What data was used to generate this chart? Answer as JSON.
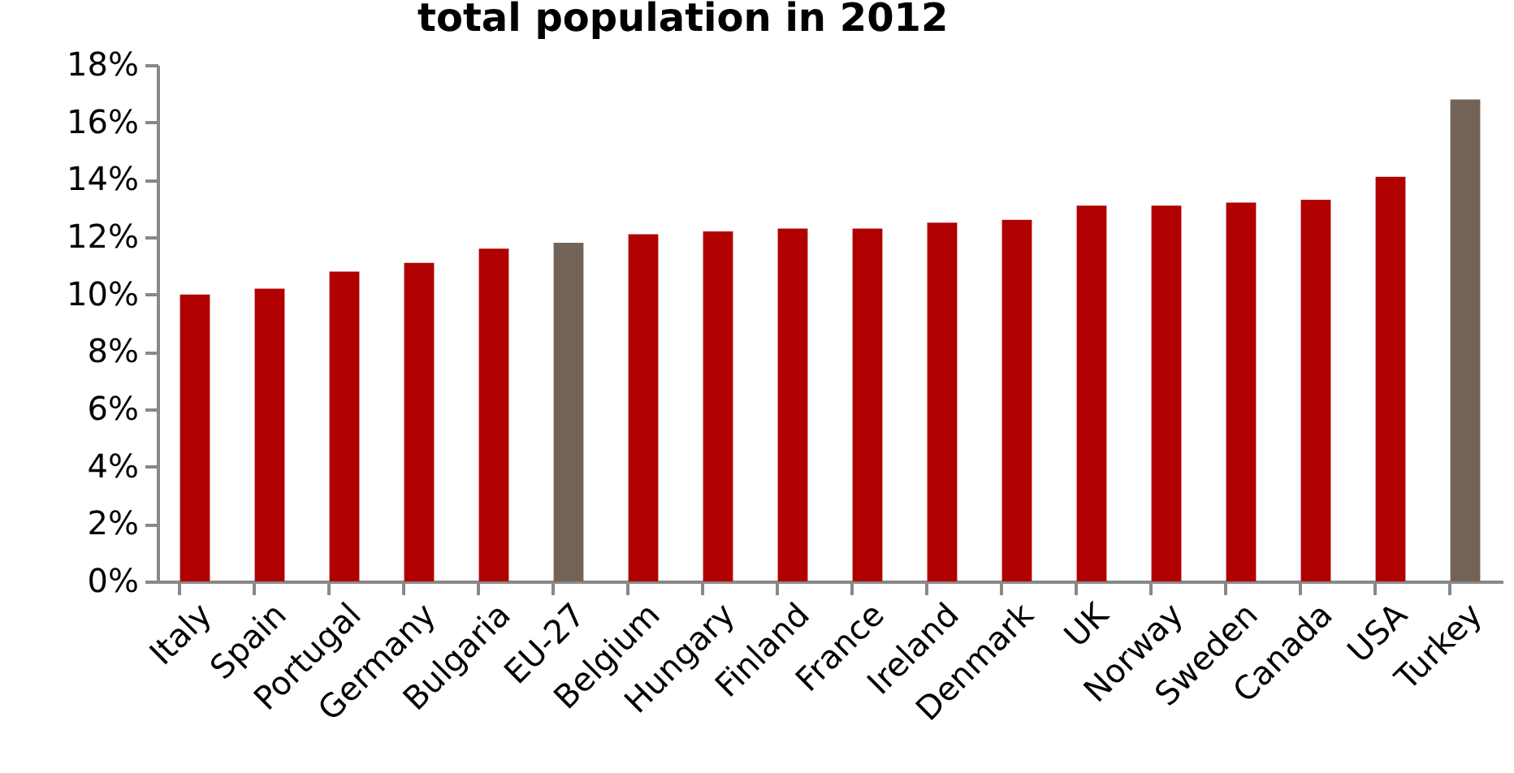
{
  "chart_data": {
    "type": "bar",
    "title": "total population in 2012",
    "categories": [
      "Italy",
      "Spain",
      "Portugal",
      "Germany",
      "Bulgaria",
      "EU-27",
      "Belgium",
      "Hungary",
      "Finland",
      "France",
      "Ireland",
      "Denmark",
      "UK",
      "Norway",
      "Sweden",
      "Canada",
      "USA",
      "Turkey"
    ],
    "values": [
      10.0,
      10.2,
      10.8,
      11.1,
      11.6,
      11.8,
      12.1,
      12.2,
      12.3,
      12.3,
      12.5,
      12.6,
      13.1,
      13.1,
      13.2,
      13.3,
      14.1,
      16.8
    ],
    "colors": [
      "#b00000",
      "#b00000",
      "#b00000",
      "#b00000",
      "#b00000",
      "#736357",
      "#b00000",
      "#b00000",
      "#b00000",
      "#b00000",
      "#b00000",
      "#b00000",
      "#b00000",
      "#b00000",
      "#b00000",
      "#b00000",
      "#b00000",
      "#736357"
    ],
    "ylim": [
      0,
      18
    ],
    "yticks": [
      {
        "value": 0,
        "label": "0%"
      },
      {
        "value": 2,
        "label": "2%"
      },
      {
        "value": 4,
        "label": "4%"
      },
      {
        "value": 6,
        "label": "6%"
      },
      {
        "value": 8,
        "label": "8%"
      },
      {
        "value": 10,
        "label": "10%"
      },
      {
        "value": 12,
        "label": "12%"
      },
      {
        "value": 14,
        "label": "14%"
      },
      {
        "value": 16,
        "label": "16%"
      },
      {
        "value": 18,
        "label": "18%"
      }
    ],
    "grid": false
  }
}
